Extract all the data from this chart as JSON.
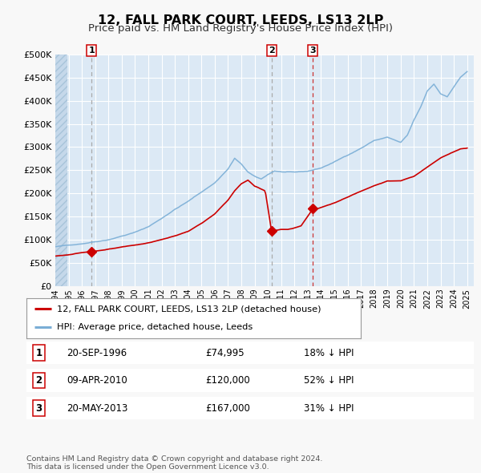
{
  "title": "12, FALL PARK COURT, LEEDS, LS13 2LP",
  "subtitle": "Price paid vs. HM Land Registry's House Price Index (HPI)",
  "title_fontsize": 11.5,
  "subtitle_fontsize": 9.5,
  "background_color": "#f8f8f8",
  "plot_bg_color": "#dce9f5",
  "grid_color": "#ffffff",
  "hpi_color": "#7aaed6",
  "price_color": "#cc0000",
  "sales": [
    {
      "label": "1",
      "date_x": 1996.72,
      "price": 74995,
      "vline_color": "#aaaaaa",
      "vline_style": "dashed"
    },
    {
      "label": "2",
      "date_x": 2010.27,
      "price": 120000,
      "vline_color": "#aaaaaa",
      "vline_style": "dashed"
    },
    {
      "label": "3",
      "date_x": 2013.38,
      "price": 167000,
      "vline_color": "#cc0000",
      "vline_style": "dashed"
    }
  ],
  "legend_entries": [
    {
      "label": "12, FALL PARK COURT, LEEDS, LS13 2LP (detached house)",
      "color": "#cc0000"
    },
    {
      "label": "HPI: Average price, detached house, Leeds",
      "color": "#7aaed6"
    }
  ],
  "table_rows": [
    {
      "num": "1",
      "date": "20-SEP-1996",
      "price": "£74,995",
      "pct": "18% ↓ HPI"
    },
    {
      "num": "2",
      "date": "09-APR-2010",
      "price": "£120,000",
      "pct": "52% ↓ HPI"
    },
    {
      "num": "3",
      "date": "20-MAY-2013",
      "price": "£167,000",
      "pct": "31% ↓ HPI"
    }
  ],
  "footer": "Contains HM Land Registry data © Crown copyright and database right 2024.\nThis data is licensed under the Open Government Licence v3.0.",
  "ylim": [
    0,
    500000
  ],
  "xlim_start": 1994.0,
  "xlim_end": 2025.5,
  "ylabel_ticks": [
    0,
    50000,
    100000,
    150000,
    200000,
    250000,
    300000,
    350000,
    400000,
    450000,
    500000
  ],
  "ylabel_labels": [
    "£0",
    "£50K",
    "£100K",
    "£150K",
    "£200K",
    "£250K",
    "£300K",
    "£350K",
    "£400K",
    "£450K",
    "£500K"
  ],
  "xtick_years": [
    1994,
    1995,
    1996,
    1997,
    1998,
    1999,
    2000,
    2001,
    2002,
    2003,
    2004,
    2005,
    2006,
    2007,
    2008,
    2009,
    2010,
    2011,
    2012,
    2013,
    2014,
    2015,
    2016,
    2017,
    2018,
    2019,
    2020,
    2021,
    2022,
    2023,
    2024,
    2025
  ]
}
